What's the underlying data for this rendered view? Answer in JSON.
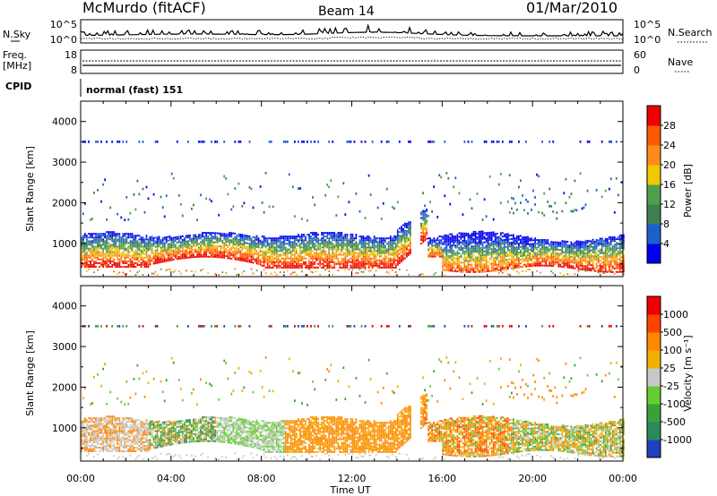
{
  "header": {
    "title": "McMurdo (fitACF)",
    "beam": "Beam 14",
    "date": "01/Mar/2010"
  },
  "panels": {
    "noise": {
      "left_label": "N.Sky",
      "right_label": "N.Search",
      "left_ticks": [
        "10^5",
        "10^0"
      ],
      "right_ticks": [
        "10^5",
        "10^0"
      ]
    },
    "freq": {
      "left_label_1": "Freq.",
      "left_label_2": "[MHz]",
      "right_label": "Nave",
      "left_ticks": [
        "18",
        "8"
      ],
      "right_ticks": [
        "60",
        "0"
      ]
    },
    "cpid": {
      "label": "CPID",
      "text": "normal (fast) 151"
    }
  },
  "chart_data": [
    {
      "type": "heatmap",
      "title": "",
      "xlabel": "Time UT",
      "ylabel": "Slant Range [km]",
      "x_ticks": [
        "00:00",
        "04:00",
        "08:00",
        "12:00",
        "16:00",
        "20:00",
        "00:00"
      ],
      "y_ticks": [
        "1000",
        "2000",
        "3000",
        "4000"
      ],
      "ylim": [
        180,
        4500
      ],
      "colorbar": {
        "label": "Power [dB]",
        "ticks": [
          "4",
          "8",
          "12",
          "16",
          "20",
          "24",
          "28"
        ],
        "range": [
          0,
          32
        ],
        "colors": [
          "#0000ee",
          "#1e5fd0",
          "#3f7f4f",
          "#4f9f4f",
          "#f0c800",
          "#ff8c1a",
          "#ff5a00",
          "#ee0000"
        ]
      }
    },
    {
      "type": "heatmap",
      "title": "",
      "xlabel": "Time UT",
      "ylabel": "Slant Range [km]",
      "x_ticks": [
        "00:00",
        "04:00",
        "08:00",
        "12:00",
        "16:00",
        "20:00",
        "00:00"
      ],
      "y_ticks": [
        "1000",
        "2000",
        "3000",
        "4000"
      ],
      "ylim": [
        180,
        4500
      ],
      "colorbar": {
        "label": "Velocity [m s⁻¹]",
        "ticks": [
          "1000",
          "500",
          "100",
          "25",
          "-25",
          "-100",
          "-500",
          "-1000"
        ],
        "colors": [
          "#2040c0",
          "#2a8a5a",
          "#3aa03a",
          "#66cc33",
          "#c8c8c8",
          "#f0b000",
          "#ff8800",
          "#ff4400",
          "#ee0000"
        ]
      }
    }
  ]
}
